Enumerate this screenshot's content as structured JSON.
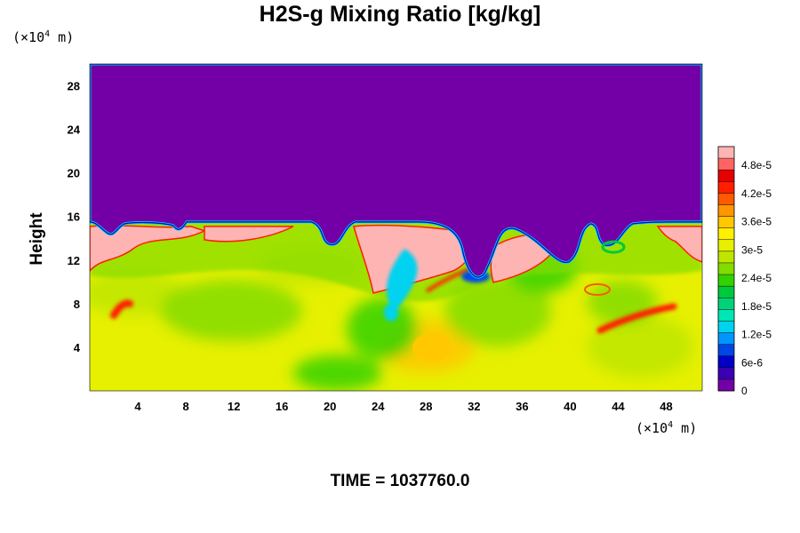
{
  "chart_data": {
    "type": "heatmap",
    "title": "H2S-g Mixing Ratio [kg/kg]",
    "ylabel": "Height",
    "xlabel": "",
    "x_units_base": "(×10",
    "x_units_exp": "4",
    "x_units_tail": " m)",
    "y_units_base": "(×10",
    "y_units_exp": "4",
    "y_units_tail": " m)",
    "xlim": [
      0,
      51
    ],
    "ylim": [
      0,
      30
    ],
    "x_ticks": [
      "4",
      "8",
      "12",
      "16",
      "20",
      "24",
      "28",
      "32",
      "36",
      "40",
      "44",
      "48"
    ],
    "y_ticks": [
      "4",
      "8",
      "12",
      "16",
      "20",
      "24",
      "28"
    ],
    "colorbar": {
      "range": [
        0,
        5.2e-05
      ],
      "tick_labels": [
        "0",
        "6e-6",
        "1.2e-5",
        "1.8e-5",
        "2.4e-5",
        "3e-5",
        "3.6e-5",
        "4.2e-5",
        "4.8e-5"
      ],
      "tick_values": [
        0,
        6e-06,
        1.2e-05,
        1.8e-05,
        2.4e-05,
        3e-05,
        3.6e-05,
        4.2e-05,
        4.8e-05
      ],
      "colors": [
        "#7300a6",
        "#3c00b4",
        "#0000c8",
        "#0046e6",
        "#0096ff",
        "#00d2f0",
        "#00e6b4",
        "#00d278",
        "#00c83c",
        "#32d200",
        "#82dc00",
        "#bee600",
        "#e6f000",
        "#fff000",
        "#ffc800",
        "#ff9600",
        "#ff5a00",
        "#ff1e00",
        "#e60000",
        "#ff6464",
        "#ffb4b4"
      ]
    },
    "fields": {
      "upper_value": 0,
      "lower_background_value": 3.2e-05,
      "interface_height": 15.5
    },
    "time_label": "TIME = 1037760.0"
  }
}
